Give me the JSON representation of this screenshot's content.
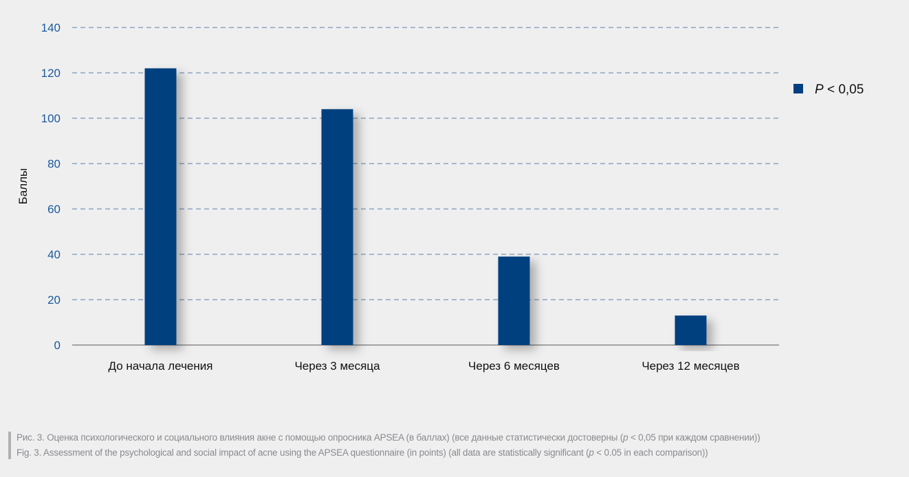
{
  "chart_data": {
    "type": "bar",
    "categories": [
      "До начала лечения",
      "Через 3 месяца",
      "Через 6 месяцев",
      "Через 12 месяцев"
    ],
    "values": [
      122,
      104,
      39,
      13
    ],
    "ylabel": "Баллы",
    "xlabel": "",
    "ylim": [
      0,
      140
    ],
    "yticks": [
      0,
      20,
      40,
      60,
      80,
      100,
      120,
      140
    ],
    "grid": true,
    "legend": {
      "placement": "top-right",
      "entries": [
        {
          "text": "P < 0,05",
          "prefix": "P",
          "suffix": " < 0,05"
        }
      ]
    },
    "colors": {
      "bar": "#003f7f",
      "grid": "#5b7fa6",
      "tick_label": "#1a5a9a",
      "axis": "#888888"
    }
  },
  "caption": {
    "ru_parts": [
      "Рис. 3. Оценка психологического и социального влияния акне с помощью опросника APSEA (в баллах) (все данные статистически достоверны (",
      "p",
      " < 0,05 при каждом сравнении))"
    ],
    "en_parts": [
      "Fig. 3. Assessment of the psychological and social impact of acne using the APSEA questionnaire (in points) (all data are statistically significant (",
      "p",
      " < 0.05 in each comparison))"
    ]
  }
}
